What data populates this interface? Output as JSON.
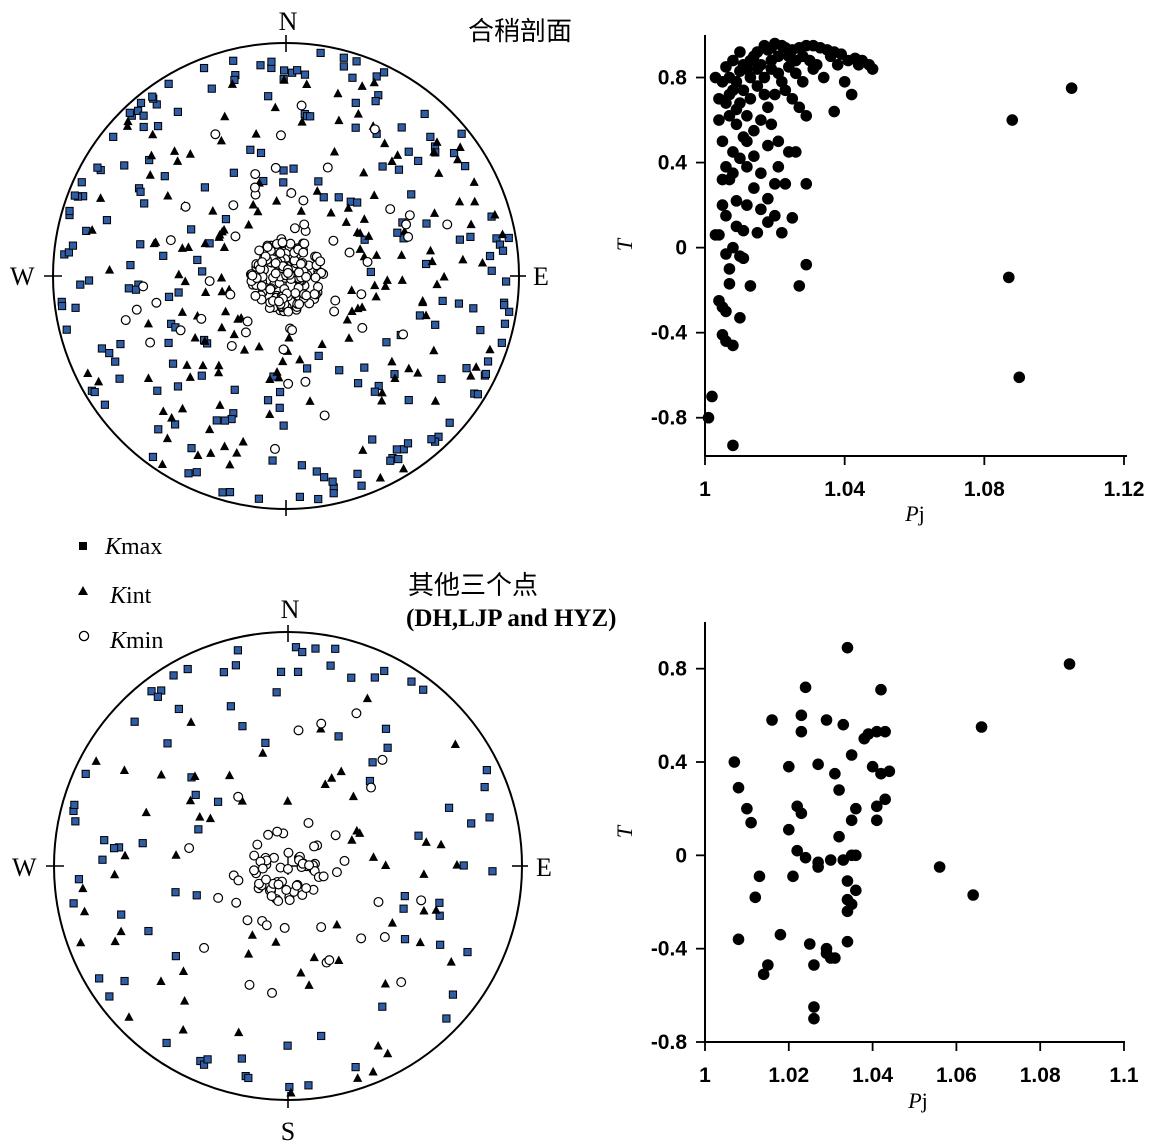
{
  "legend": {
    "kmax": {
      "k": "K",
      "sub": "max"
    },
    "kint": {
      "k": "K",
      "sub": "int"
    },
    "kmin": {
      "k": "K",
      "sub": "min"
    }
  },
  "colors": {
    "kmax_fill": "#2f5ea7",
    "ink": "#000000"
  },
  "chart_data": [
    {
      "type": "stereonet",
      "title": "合稍剖面",
      "labels": {
        "n": "N",
        "e": "E",
        "s": "",
        "w": "W"
      },
      "seed": 7,
      "counts": {
        "kmax": 210,
        "kint": 160,
        "kmin_center": 150,
        "kmin_scatter": 50
      }
    },
    {
      "type": "scatter",
      "xlabel": {
        "main": "P",
        "sub": "j"
      },
      "ylabel": "T",
      "xlim": [
        1,
        1.12
      ],
      "ylim": [
        -0.98,
        1.0
      ],
      "xticks": [
        "1",
        "1.04",
        "1.08",
        "1.12"
      ],
      "yticks": [
        "-0.8",
        "-0.4",
        "0",
        "0.4",
        "0.8"
      ],
      "points": [
        [
          1.001,
          -0.8
        ],
        [
          1.002,
          -0.7
        ],
        [
          1.008,
          -0.93
        ],
        [
          1.003,
          0.06
        ],
        [
          1.004,
          0.06
        ],
        [
          1.004,
          -0.25
        ],
        [
          1.005,
          -0.28
        ],
        [
          1.005,
          -0.41
        ],
        [
          1.006,
          -0.44
        ],
        [
          1.008,
          -0.46
        ],
        [
          1.006,
          -0.3
        ],
        [
          1.01,
          -0.33
        ],
        [
          1.007,
          -0.1
        ],
        [
          1.006,
          -0.03
        ],
        [
          1.005,
          0.32
        ],
        [
          1.007,
          0.32
        ],
        [
          1.009,
          0.22
        ],
        [
          1.012,
          0.2
        ],
        [
          1.015,
          0.07
        ],
        [
          1.011,
          0.08
        ],
        [
          1.013,
          -0.18
        ],
        [
          1.01,
          -0.04
        ],
        [
          1.027,
          -0.18
        ],
        [
          1.029,
          -0.08
        ],
        [
          1.025,
          0.14
        ],
        [
          1.022,
          0.07
        ],
        [
          1.018,
          0.23
        ],
        [
          1.029,
          0.3
        ],
        [
          1.02,
          0.3
        ],
        [
          1.016,
          0.35
        ],
        [
          1.024,
          0.45
        ],
        [
          1.026,
          0.45
        ],
        [
          1.021,
          0.5
        ],
        [
          1.018,
          0.48
        ],
        [
          1.014,
          0.43
        ],
        [
          1.012,
          0.5
        ],
        [
          1.008,
          0.45
        ],
        [
          1.006,
          0.38
        ],
        [
          1.005,
          0.5
        ],
        [
          1.004,
          0.6
        ],
        [
          1.006,
          0.68
        ],
        [
          1.007,
          0.72
        ],
        [
          1.009,
          0.78
        ],
        [
          1.01,
          0.83
        ],
        [
          1.011,
          0.86
        ],
        [
          1.013,
          0.88
        ],
        [
          1.012,
          0.84
        ],
        [
          1.014,
          0.9
        ],
        [
          1.015,
          0.92
        ],
        [
          1.017,
          0.95
        ],
        [
          1.018,
          0.93
        ],
        [
          1.019,
          0.94
        ],
        [
          1.02,
          0.96
        ],
        [
          1.022,
          0.95
        ],
        [
          1.023,
          0.94
        ],
        [
          1.025,
          0.93
        ],
        [
          1.027,
          0.94
        ],
        [
          1.029,
          0.95
        ],
        [
          1.031,
          0.95
        ],
        [
          1.033,
          0.94
        ],
        [
          1.035,
          0.93
        ],
        [
          1.037,
          0.92
        ],
        [
          1.039,
          0.91
        ],
        [
          1.041,
          0.88
        ],
        [
          1.043,
          0.89
        ],
        [
          1.045,
          0.88
        ],
        [
          1.047,
          0.86
        ],
        [
          1.048,
          0.84
        ],
        [
          1.04,
          0.78
        ],
        [
          1.042,
          0.72
        ],
        [
          1.037,
          0.64
        ],
        [
          1.034,
          0.8
        ],
        [
          1.031,
          0.84
        ],
        [
          1.028,
          0.78
        ],
        [
          1.026,
          0.82
        ],
        [
          1.024,
          0.85
        ],
        [
          1.022,
          0.78
        ],
        [
          1.02,
          0.72
        ],
        [
          1.018,
          0.66
        ],
        [
          1.016,
          0.6
        ],
        [
          1.014,
          0.55
        ],
        [
          1.012,
          0.62
        ],
        [
          1.01,
          0.68
        ],
        [
          1.008,
          0.74
        ],
        [
          1.007,
          0.8
        ],
        [
          1.009,
          0.58
        ],
        [
          1.011,
          0.52
        ],
        [
          1.013,
          0.7
        ],
        [
          1.015,
          0.76
        ],
        [
          1.017,
          0.8
        ],
        [
          1.019,
          0.84
        ],
        [
          1.021,
          0.82
        ],
        [
          1.023,
          0.74
        ],
        [
          1.025,
          0.7
        ],
        [
          1.027,
          0.66
        ],
        [
          1.029,
          0.62
        ],
        [
          1.016,
          0.86
        ],
        [
          1.019,
          0.88
        ],
        [
          1.021,
          0.9
        ],
        [
          1.024,
          0.9
        ],
        [
          1.105,
          0.75
        ],
        [
          1.088,
          0.6
        ],
        [
          1.087,
          -0.14
        ],
        [
          1.09,
          -0.61
        ],
        [
          1.003,
          0.8
        ],
        [
          1.005,
          0.78
        ],
        [
          1.004,
          0.7
        ],
        [
          1.007,
          0.62
        ],
        [
          1.009,
          0.65
        ],
        [
          1.011,
          0.74
        ],
        [
          1.013,
          0.8
        ],
        [
          1.015,
          0.84
        ],
        [
          1.017,
          0.72
        ],
        [
          1.019,
          0.58
        ],
        [
          1.021,
          0.38
        ],
        [
          1.023,
          0.3
        ],
        [
          1.018,
          0.12
        ],
        [
          1.016,
          0.18
        ],
        [
          1.014,
          0.28
        ],
        [
          1.012,
          0.38
        ],
        [
          1.01,
          0.42
        ],
        [
          1.008,
          0.35
        ],
        [
          1.006,
          0.15
        ],
        [
          1.005,
          0.2
        ],
        [
          1.009,
          0.1
        ],
        [
          1.011,
          -0.05
        ],
        [
          1.007,
          -0.17
        ],
        [
          1.008,
          0.0
        ],
        [
          1.02,
          0.15
        ],
        [
          1.03,
          0.88
        ],
        [
          1.032,
          0.86
        ],
        [
          1.036,
          0.9
        ],
        [
          1.038,
          0.86
        ],
        [
          1.044,
          0.86
        ],
        [
          1.026,
          0.88
        ],
        [
          1.028,
          0.9
        ],
        [
          1.01,
          0.92
        ],
        [
          1.008,
          0.88
        ],
        [
          1.006,
          0.85
        ]
      ]
    },
    {
      "type": "stereonet",
      "title": "其他三个点",
      "subtitle": "(DH,LJP and HYZ)",
      "labels": {
        "n": "N",
        "e": "E",
        "s": "S",
        "w": "W"
      },
      "seed": 21,
      "counts": {
        "kmax": 85,
        "kint": 62,
        "kmin_center": 55,
        "kmin_scatter": 30
      }
    },
    {
      "type": "scatter",
      "xlabel": {
        "main": "P",
        "sub": "j"
      },
      "ylabel": "T",
      "xlim": [
        1,
        1.1
      ],
      "ylim": [
        -0.8,
        1.0
      ],
      "xticks": [
        "1",
        "1.02",
        "1.04",
        "1.06",
        "1.08",
        "1.1"
      ],
      "yticks": [
        "-0.8",
        "-0.4",
        "0",
        "0.4",
        "0.8"
      ],
      "points": [
        [
          1.007,
          0.4
        ],
        [
          1.008,
          0.29
        ],
        [
          1.008,
          -0.36
        ],
        [
          1.01,
          0.2
        ],
        [
          1.011,
          0.14
        ],
        [
          1.012,
          -0.18
        ],
        [
          1.013,
          -0.09
        ],
        [
          1.014,
          -0.51
        ],
        [
          1.015,
          -0.47
        ],
        [
          1.016,
          0.58
        ],
        [
          1.018,
          -0.34
        ],
        [
          1.02,
          0.11
        ],
        [
          1.021,
          -0.09
        ],
        [
          1.022,
          0.21
        ],
        [
          1.022,
          0.02
        ],
        [
          1.023,
          0.18
        ],
        [
          1.023,
          0.6
        ],
        [
          1.023,
          0.53
        ],
        [
          1.024,
          0.72
        ],
        [
          1.024,
          -0.01
        ],
        [
          1.025,
          -0.38
        ],
        [
          1.026,
          -0.65
        ],
        [
          1.026,
          -0.7
        ],
        [
          1.026,
          -0.47
        ],
        [
          1.027,
          -0.05
        ],
        [
          1.027,
          -0.03
        ],
        [
          1.027,
          0.39
        ],
        [
          1.029,
          0.58
        ],
        [
          1.029,
          -0.4
        ],
        [
          1.029,
          -0.42
        ],
        [
          1.03,
          -0.44
        ],
        [
          1.031,
          -0.44
        ],
        [
          1.031,
          0.35
        ],
        [
          1.032,
          0.28
        ],
        [
          1.032,
          0.08
        ],
        [
          1.033,
          0.56
        ],
        [
          1.033,
          -0.02
        ],
        [
          1.034,
          -0.11
        ],
        [
          1.034,
          -0.19
        ],
        [
          1.034,
          -0.24
        ],
        [
          1.034,
          -0.37
        ],
        [
          1.034,
          0.89
        ],
        [
          1.035,
          0.15
        ],
        [
          1.035,
          0.43
        ],
        [
          1.035,
          0.0
        ],
        [
          1.036,
          -0.15
        ],
        [
          1.036,
          0.0
        ],
        [
          1.035,
          -0.21
        ],
        [
          1.036,
          0.2
        ],
        [
          1.038,
          0.5
        ],
        [
          1.039,
          0.52
        ],
        [
          1.04,
          0.38
        ],
        [
          1.041,
          0.53
        ],
        [
          1.041,
          0.21
        ],
        [
          1.041,
          0.15
        ],
        [
          1.042,
          0.71
        ],
        [
          1.042,
          0.35
        ],
        [
          1.043,
          0.53
        ],
        [
          1.043,
          0.24
        ],
        [
          1.044,
          0.36
        ],
        [
          1.056,
          -0.05
        ],
        [
          1.064,
          -0.17
        ],
        [
          1.066,
          0.55
        ],
        [
          1.087,
          0.82
        ],
        [
          1.03,
          -0.02
        ],
        [
          1.02,
          0.38
        ]
      ]
    }
  ]
}
